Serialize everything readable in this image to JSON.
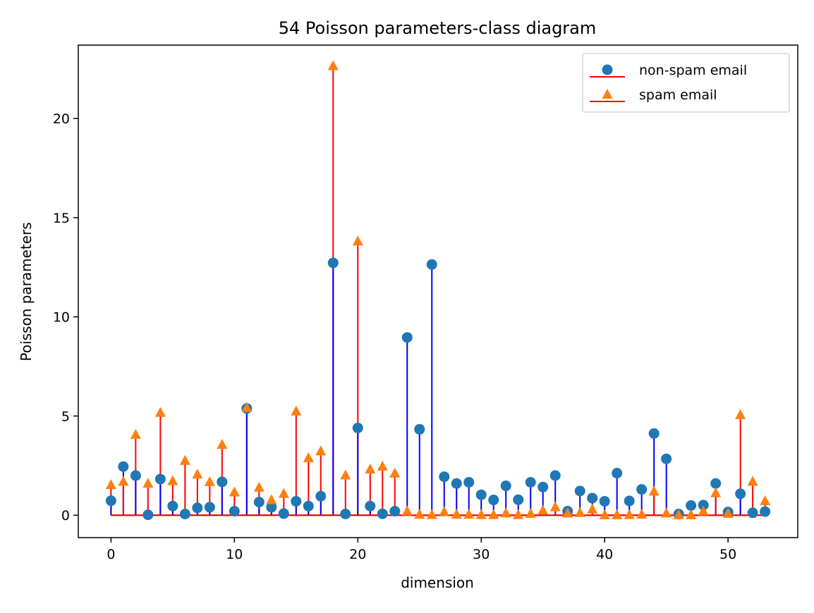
{
  "chart_data": {
    "type": "stem",
    "title": "54 Poisson parameters-class diagram",
    "xlabel": "dimension",
    "ylabel": "Poisson parameters",
    "xlim": [
      -2.65,
      55.65
    ],
    "ylim": [
      -1.13,
      23.7
    ],
    "xticks": [
      0,
      10,
      20,
      30,
      40,
      50
    ],
    "yticks": [
      0,
      5,
      10,
      15,
      20
    ],
    "legend_position": "top-right",
    "colors": {
      "nonspam_marker": "#1f77b4",
      "spam_marker": "#ff7f0e",
      "nonspam_stem": "#0000ff",
      "spam_stem": "#ff0000",
      "baseline": "#ff0000",
      "axes": "#000000"
    },
    "series": [
      {
        "name": "non-spam email",
        "marker": "circle",
        "values": [
          0.73,
          2.45,
          2.0,
          0.02,
          1.82,
          0.46,
          0.06,
          0.37,
          0.4,
          1.68,
          0.2,
          5.38,
          0.66,
          0.4,
          0.08,
          0.7,
          0.46,
          0.96,
          12.72,
          0.06,
          4.4,
          0.46,
          0.07,
          0.2,
          8.96,
          4.33,
          12.64,
          1.94,
          1.6,
          1.66,
          1.03,
          0.77,
          1.48,
          0.78,
          1.66,
          1.42,
          2.0,
          0.2,
          1.22,
          0.86,
          0.7,
          2.12,
          0.72,
          1.3,
          4.12,
          2.84,
          0.06,
          0.49,
          0.51,
          1.6,
          0.16,
          1.08,
          0.12,
          0.18
        ]
      },
      {
        "name": "spam email",
        "marker": "triangle",
        "values": [
          1.53,
          1.7,
          4.06,
          1.6,
          5.17,
          1.73,
          2.75,
          2.06,
          1.68,
          3.56,
          1.16,
          5.42,
          1.4,
          0.77,
          1.09,
          5.24,
          2.89,
          3.23,
          22.65,
          2.02,
          13.81,
          2.32,
          2.46,
          2.11,
          0.2,
          0.04,
          0.02,
          0.16,
          0.04,
          0.04,
          0.02,
          0.02,
          0.1,
          0.02,
          0.08,
          0.24,
          0.41,
          0.1,
          0.12,
          0.3,
          0.01,
          0.01,
          0.02,
          0.04,
          1.2,
          0.1,
          0.01,
          0.01,
          0.2,
          1.12,
          0.08,
          5.06,
          1.7,
          0.72
        ]
      }
    ]
  }
}
